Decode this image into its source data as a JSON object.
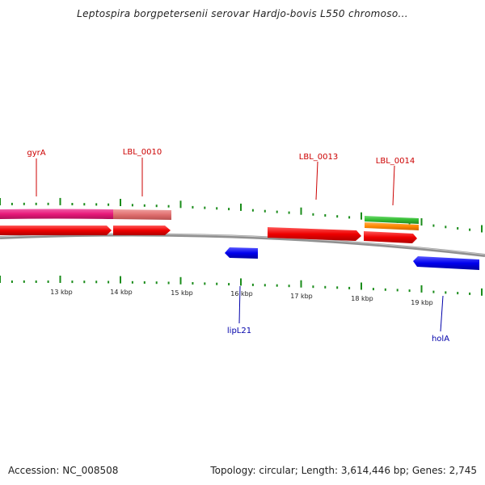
{
  "title": "Leptospira borgpetersenii serovar Hardjo-bovis L550 chromoso...",
  "footer": {
    "accession": "Accession: NC_008508",
    "summary": "Topology: circular; Length: 3,614,446 bp; Genes: 2,745"
  },
  "scale_labels": [
    "13 kbp",
    "14 kbp",
    "15 kbp",
    "16 kbp",
    "17 kbp",
    "18 kbp",
    "19 kbp"
  ],
  "gene_labels_forward": [
    "gyrA",
    "LBL_0010",
    "LBL_0013",
    "LBL_0014"
  ],
  "gene_labels_reverse": [
    "lipL21",
    "holA"
  ],
  "colors": {
    "forward_label": "#cc0000",
    "reverse_label": "#0000aa",
    "cds_forward": "#ee0000",
    "cds_reverse": "#0000ee",
    "gene_pink": "#e8197a",
    "gene_salmon": "#e07070",
    "gene_green": "#33bb33",
    "gene_orange": "#ff8800",
    "tick": "#1a8c1a",
    "backbone": "#808080"
  }
}
